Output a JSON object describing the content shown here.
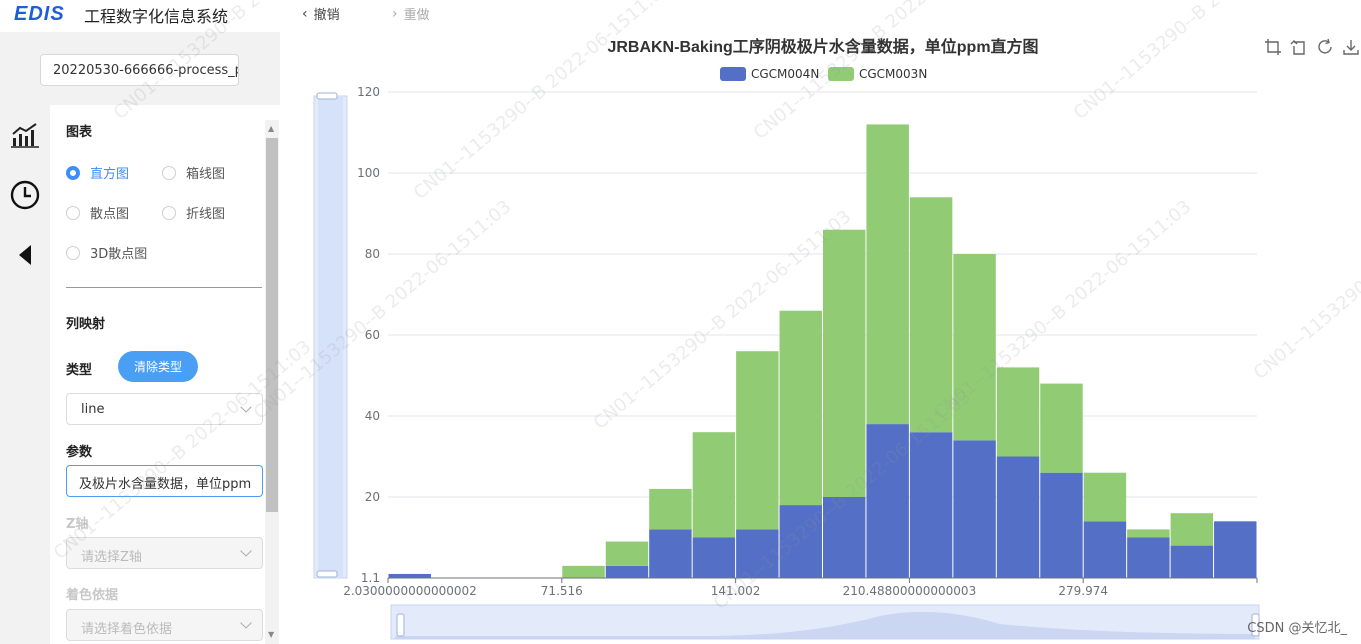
{
  "header": {
    "logo_text": "EDIS",
    "app_title": "工程数字化信息系统",
    "undo_label": "撤销",
    "redo_label": "重做"
  },
  "sidebar": {
    "file_name": "20220530-666666-process_p",
    "nav_icons": [
      "chart-icon",
      "clock-icon",
      "collapse-arrow-icon"
    ]
  },
  "panel": {
    "chart_section": "图表",
    "chart_types": [
      {
        "label": "直方图",
        "checked": true
      },
      {
        "label": "箱线图",
        "checked": false
      },
      {
        "label": "散点图",
        "checked": false
      },
      {
        "label": "折线图",
        "checked": false
      },
      {
        "label": "3D散点图",
        "checked": false
      }
    ],
    "mapping_section": "列映射",
    "type_label": "类型",
    "clear_type_button": "清除类型",
    "type_value": "line",
    "param_label": "参数",
    "param_value": "及极片水含量数据，单位ppm",
    "z_axis_label": "Z轴",
    "z_axis_placeholder": "请选择Z轴",
    "color_by_label": "着色依据",
    "color_by_placeholder": "请选择着色依据"
  },
  "toolbox": {
    "icons": [
      "zoom-area-icon",
      "zoom-reset-icon",
      "refresh-icon",
      "download-icon"
    ]
  },
  "watermark": {
    "text": "CN01--1153290--B  2022-06-1511:03",
    "credit": "CSDN @关忆北_"
  },
  "colors": {
    "series1": "#5470c6",
    "series2": "#91cc75",
    "accent": "#3e8ef7"
  },
  "chart_data": {
    "type": "bar",
    "stacked": true,
    "title": "JRBAKN-Baking工序阴极极片水含量数据，单位ppm直方图",
    "x_tick_labels": [
      "2.0300000000000002",
      "71.516",
      "141.002",
      "210.48800000000003",
      "279.974"
    ],
    "y_tick_labels": [
      "1.1",
      "20",
      "40",
      "60",
      "80",
      "100",
      "120"
    ],
    "ylim": [
      0,
      120
    ],
    "legend_position": "top-center",
    "bins": 20,
    "series": [
      {
        "name": "CGCM004N",
        "values": [
          1,
          0,
          0,
          0,
          0,
          3,
          12,
          10,
          12,
          18,
          20,
          38,
          36,
          34,
          30,
          26,
          14,
          10,
          8,
          14
        ]
      },
      {
        "name": "CGCM003N",
        "values": [
          0,
          0,
          0,
          0,
          3,
          6,
          10,
          26,
          44,
          48,
          66,
          74,
          58,
          46,
          22,
          22,
          12,
          2,
          8,
          0
        ]
      }
    ]
  }
}
